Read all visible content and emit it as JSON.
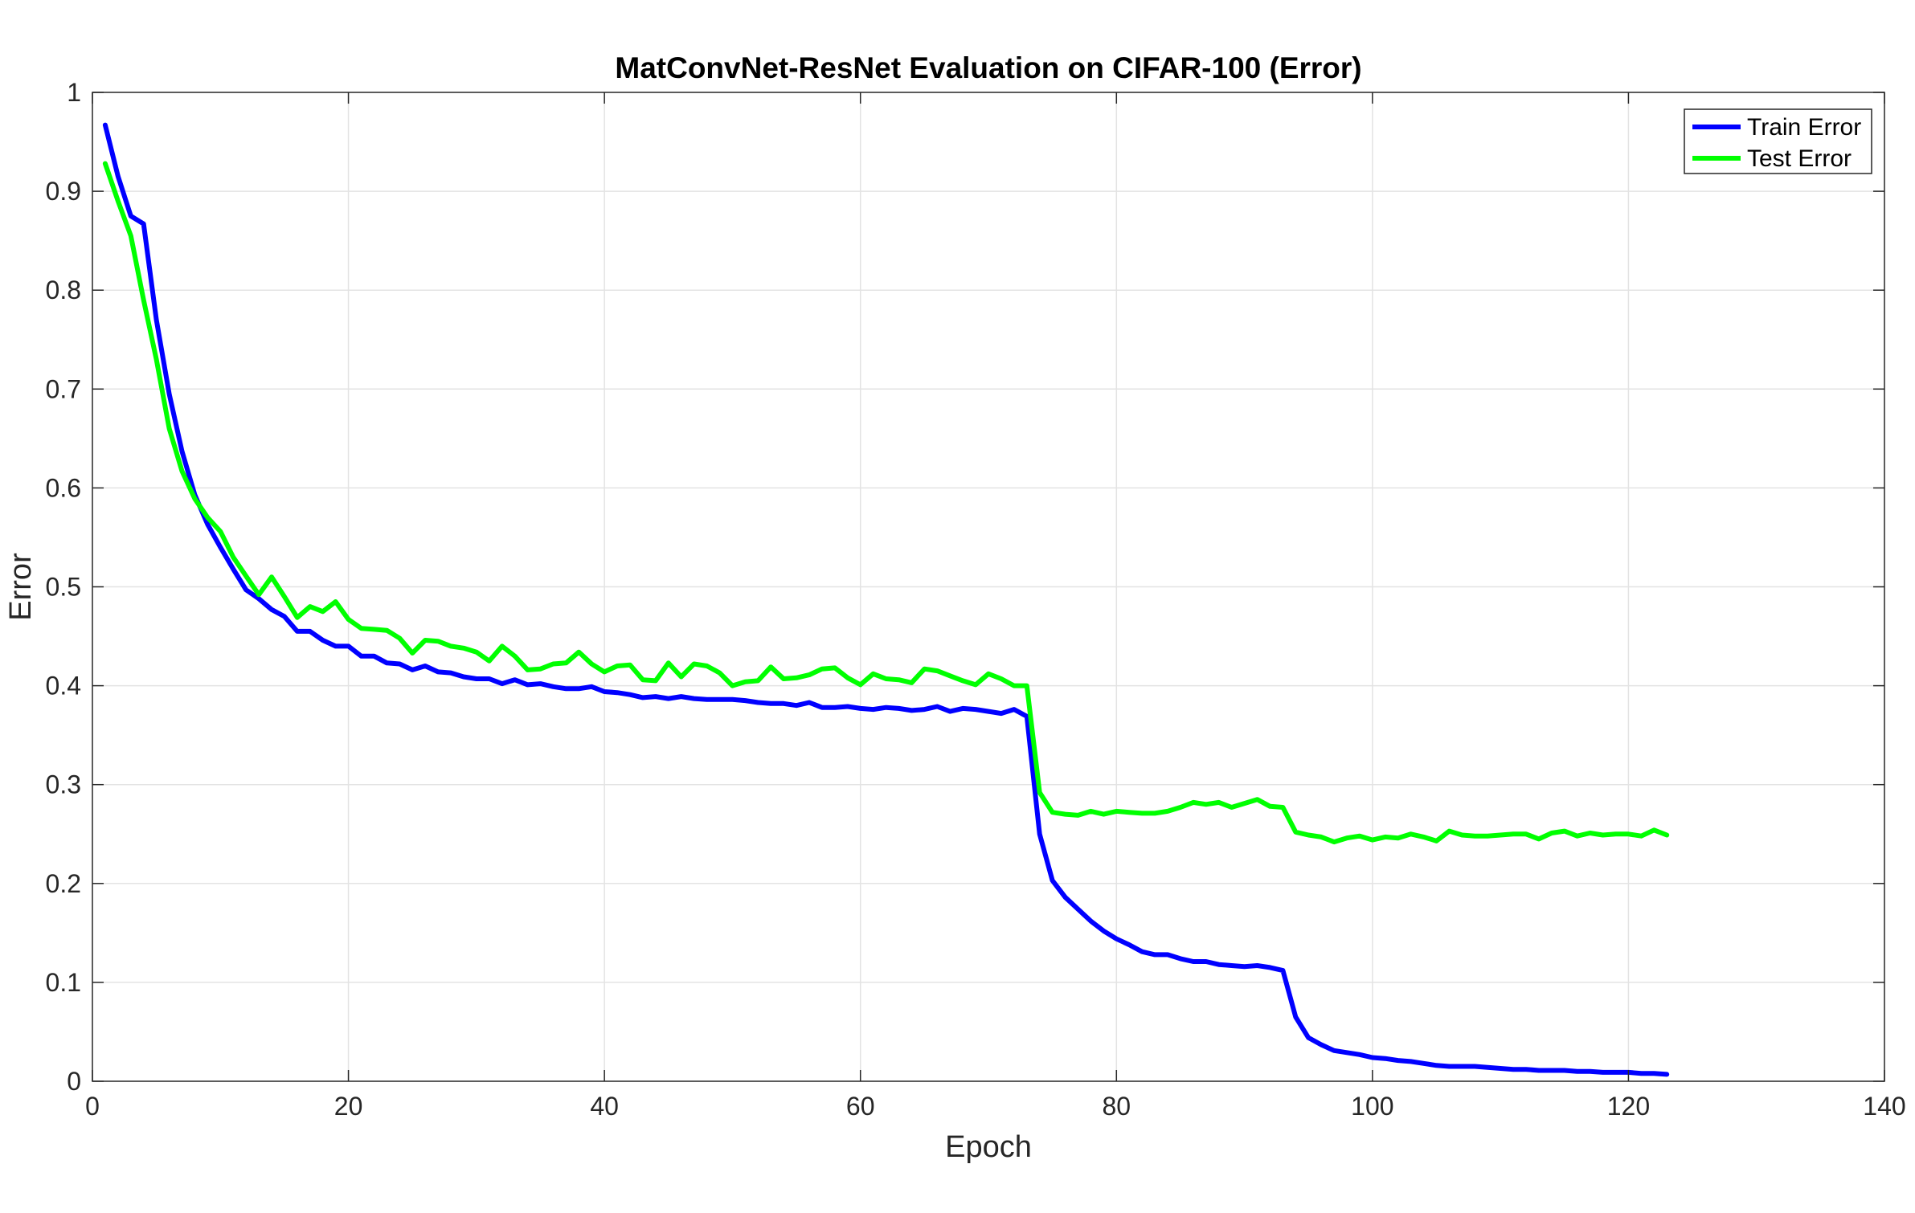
{
  "chart_data": {
    "type": "line",
    "title": "MatConvNet-ResNet Evaluation on CIFAR-100 (Error)",
    "xlabel": "Epoch",
    "ylabel": "Error",
    "xlim": [
      0,
      140
    ],
    "ylim": [
      0,
      1
    ],
    "xticks": [
      0,
      20,
      40,
      60,
      80,
      100,
      120,
      140
    ],
    "yticks": [
      0,
      0.1,
      0.2,
      0.3,
      0.4,
      0.5,
      0.6,
      0.7,
      0.8,
      0.9,
      1
    ],
    "xtick_labels": [
      "0",
      "20",
      "40",
      "60",
      "80",
      "100",
      "120",
      "140"
    ],
    "ytick_labels": [
      "0",
      "0.1",
      "0.2",
      "0.3",
      "0.4",
      "0.5",
      "0.6",
      "0.7",
      "0.8",
      "0.9",
      "1"
    ],
    "grid": true,
    "legend_position": "top-right",
    "x": [
      1,
      2,
      3,
      4,
      5,
      6,
      7,
      8,
      9,
      10,
      11,
      12,
      13,
      14,
      15,
      16,
      17,
      18,
      19,
      20,
      21,
      22,
      23,
      24,
      25,
      26,
      27,
      28,
      29,
      30,
      31,
      32,
      33,
      34,
      35,
      36,
      37,
      38,
      39,
      40,
      41,
      42,
      43,
      44,
      45,
      46,
      47,
      48,
      49,
      50,
      51,
      52,
      53,
      54,
      55,
      56,
      57,
      58,
      59,
      60,
      61,
      62,
      63,
      64,
      65,
      66,
      67,
      68,
      69,
      70,
      71,
      72,
      73,
      74,
      75,
      76,
      77,
      78,
      79,
      80,
      81,
      82,
      83,
      84,
      85,
      86,
      87,
      88,
      89,
      90,
      91,
      92,
      93,
      94,
      95,
      96,
      97,
      98,
      99,
      100,
      101,
      102,
      103,
      104,
      105,
      106,
      107,
      108,
      109,
      110,
      111,
      112,
      113,
      114,
      115,
      116,
      117,
      118,
      119,
      120,
      121,
      122,
      123
    ],
    "series": [
      {
        "name": "Train Error",
        "color": "#0000ff",
        "values": [
          0.967,
          0.915,
          0.875,
          0.867,
          0.77,
          0.695,
          0.637,
          0.593,
          0.563,
          0.54,
          0.518,
          0.497,
          0.488,
          0.477,
          0.47,
          0.455,
          0.455,
          0.446,
          0.44,
          0.44,
          0.43,
          0.43,
          0.423,
          0.422,
          0.416,
          0.42,
          0.414,
          0.413,
          0.409,
          0.407,
          0.407,
          0.402,
          0.406,
          0.401,
          0.402,
          0.399,
          0.397,
          0.397,
          0.399,
          0.394,
          0.393,
          0.391,
          0.388,
          0.389,
          0.387,
          0.389,
          0.387,
          0.386,
          0.386,
          0.386,
          0.385,
          0.383,
          0.382,
          0.382,
          0.38,
          0.383,
          0.378,
          0.378,
          0.379,
          0.377,
          0.376,
          0.378,
          0.377,
          0.375,
          0.376,
          0.379,
          0.374,
          0.377,
          0.376,
          0.374,
          0.372,
          0.376,
          0.369,
          0.25,
          0.203,
          0.186,
          0.174,
          0.162,
          0.152,
          0.144,
          0.138,
          0.131,
          0.128,
          0.128,
          0.124,
          0.121,
          0.121,
          0.118,
          0.117,
          0.116,
          0.117,
          0.115,
          0.112,
          0.065,
          0.044,
          0.037,
          0.031,
          0.029,
          0.027,
          0.024,
          0.023,
          0.021,
          0.02,
          0.018,
          0.016,
          0.015,
          0.015,
          0.015,
          0.014,
          0.013,
          0.012,
          0.012,
          0.011,
          0.011,
          0.011,
          0.01,
          0.01,
          0.009,
          0.009,
          0.009,
          0.008,
          0.008,
          0.007
        ]
      },
      {
        "name": "Test Error",
        "color": "#00ff00",
        "values": [
          0.928,
          0.89,
          0.855,
          0.79,
          0.73,
          0.66,
          0.617,
          0.589,
          0.57,
          0.556,
          0.53,
          0.511,
          0.492,
          0.51,
          0.49,
          0.469,
          0.48,
          0.475,
          0.485,
          0.467,
          0.458,
          0.457,
          0.456,
          0.448,
          0.433,
          0.446,
          0.445,
          0.44,
          0.438,
          0.434,
          0.425,
          0.44,
          0.43,
          0.416,
          0.417,
          0.422,
          0.423,
          0.434,
          0.422,
          0.414,
          0.42,
          0.421,
          0.406,
          0.405,
          0.423,
          0.409,
          0.422,
          0.42,
          0.413,
          0.4,
          0.404,
          0.405,
          0.419,
          0.407,
          0.408,
          0.411,
          0.417,
          0.418,
          0.408,
          0.401,
          0.412,
          0.407,
          0.406,
          0.403,
          0.417,
          0.415,
          0.41,
          0.405,
          0.401,
          0.412,
          0.407,
          0.4,
          0.4,
          0.292,
          0.272,
          0.27,
          0.269,
          0.273,
          0.27,
          0.273,
          0.272,
          0.271,
          0.271,
          0.273,
          0.277,
          0.282,
          0.28,
          0.282,
          0.277,
          0.281,
          0.285,
          0.278,
          0.277,
          0.252,
          0.249,
          0.247,
          0.242,
          0.246,
          0.248,
          0.244,
          0.247,
          0.246,
          0.25,
          0.247,
          0.243,
          0.253,
          0.249,
          0.248,
          0.248,
          0.249,
          0.25,
          0.25,
          0.245,
          0.251,
          0.253,
          0.248,
          0.251,
          0.249,
          0.25,
          0.25,
          0.248,
          0.254,
          0.249
        ]
      }
    ]
  }
}
